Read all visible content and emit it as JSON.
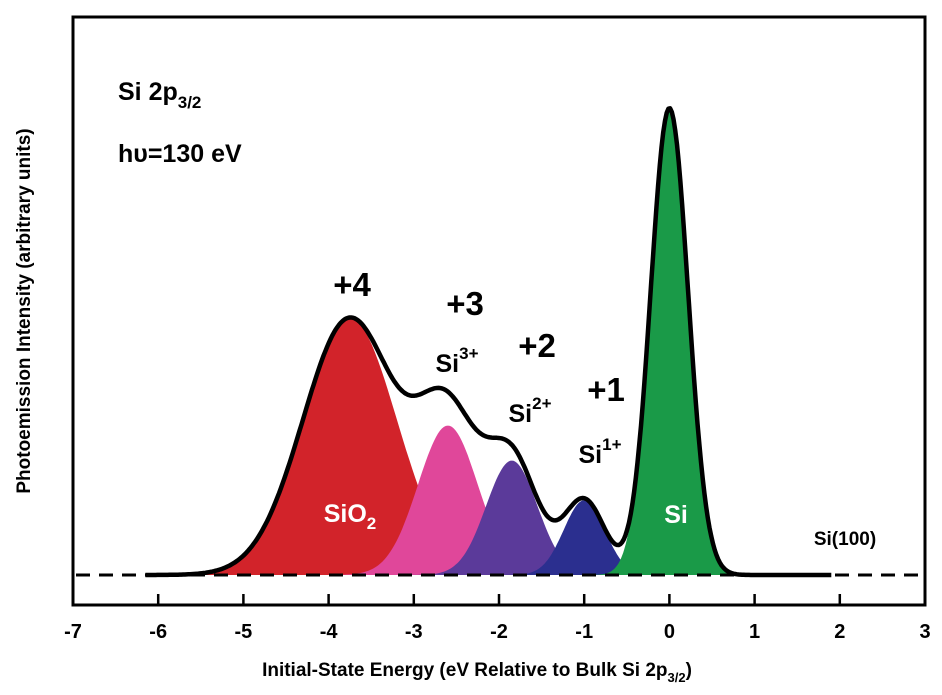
{
  "chart_data": {
    "type": "area",
    "xlabel_main": "Initial-State Energy (eV Relative to Bulk Si 2p",
    "xlabel_sub": "3/2",
    "xlabel_close": ")",
    "ylabel": "Photoemission Intensity (arbitrary units)",
    "xlim": [
      -7,
      3
    ],
    "x_ticks": [
      "-7",
      "-6",
      "-5",
      "-4",
      "-3",
      "-2",
      "-1",
      "0",
      "1",
      "2",
      "3"
    ],
    "y_ticks": [],
    "baseline_dashed": true,
    "annotation_line1_main": "Si 2p",
    "annotation_line1_sub": "3/2",
    "annotation_line2": "hυ=130 eV",
    "sample_label": "Si(100)",
    "colors": {
      "sio2": "#d2232a",
      "si3": "#e0479a",
      "si2": "#5b3a9a",
      "si1": "#2b2f8f",
      "si": "#1a9a48",
      "envelope": "#000000"
    },
    "peaks": [
      {
        "id": "sio2",
        "center": -3.75,
        "amplitude": 0.55,
        "sigma": 0.55,
        "charge": "+4",
        "species_main": "SiO",
        "species_sub": "2",
        "species_sup": "",
        "inside": true
      },
      {
        "id": "si3",
        "center": -2.6,
        "amplitude": 0.32,
        "sigma": 0.35,
        "charge": "+3",
        "species_main": "Si",
        "species_sub": "",
        "species_sup": "3+",
        "inside": false
      },
      {
        "id": "si2",
        "center": -1.85,
        "amplitude": 0.245,
        "sigma": 0.3,
        "charge": "+2",
        "species_main": "Si",
        "species_sub": "",
        "species_sup": "2+",
        "inside": false
      },
      {
        "id": "si1",
        "center": -1.0,
        "amplitude": 0.16,
        "sigma": 0.24,
        "charge": "+1",
        "species_main": "Si",
        "species_sub": "",
        "species_sup": "1+",
        "inside": false
      },
      {
        "id": "si",
        "center": 0.0,
        "amplitude": 1.0,
        "sigma": 0.22,
        "charge": "",
        "species_main": "Si",
        "species_sub": "",
        "species_sup": "",
        "inside": true
      }
    ]
  }
}
